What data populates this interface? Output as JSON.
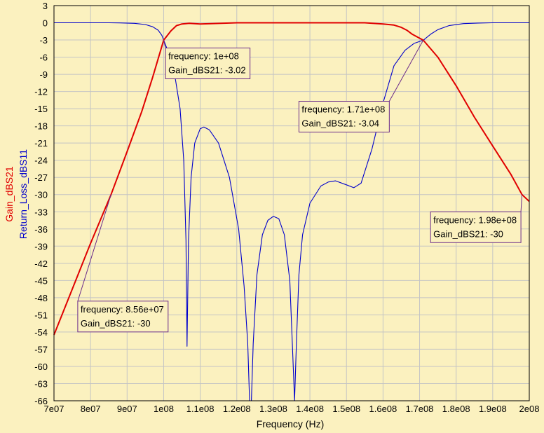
{
  "chart_data": {
    "type": "line",
    "xlabel": "Frequency (Hz)",
    "ylabels": [
      {
        "text": "Gain_dBS21",
        "color": "#e00000"
      },
      {
        "text": "Return_Loss_dBS11",
        "color": "#0000cc"
      }
    ],
    "xlim": [
      70000000,
      200000000
    ],
    "ylim": [
      -66,
      3
    ],
    "xticks": [
      70000000,
      80000000,
      90000000,
      100000000,
      110000000,
      120000000,
      130000000,
      140000000,
      150000000,
      160000000,
      170000000,
      180000000,
      190000000,
      200000000
    ],
    "xtick_labels": [
      "7e07",
      "8e07",
      "9e07",
      "1e08",
      "1.1e08",
      "1.2e08",
      "1.3e08",
      "1.4e08",
      "1.5e08",
      "1.6e08",
      "1.7e08",
      "1.8e08",
      "1.9e08",
      "2e08"
    ],
    "yticks": [
      3,
      0,
      -3,
      -6,
      -9,
      -12,
      -15,
      -18,
      -21,
      -24,
      -27,
      -30,
      -33,
      -36,
      -39,
      -42,
      -45,
      -48,
      -51,
      -54,
      -57,
      -60,
      -63,
      -66
    ],
    "ytick_labels": [
      "3",
      "0",
      "-3",
      "-6",
      "-9",
      "-12",
      "-15",
      "-18",
      "-21",
      "-24",
      "-27",
      "-30",
      "-33",
      "-36",
      "-39",
      "-42",
      "-45",
      "-48",
      "-51",
      "-54",
      "-57",
      "-60",
      "-63",
      "-66"
    ],
    "grid": true,
    "series": [
      {
        "name": "Gain_dBS21",
        "color": "#e00000",
        "x": [
          70000000,
          75000000,
          80000000,
          85600000,
          90000000,
          94000000,
          97000000,
          100000000,
          102000000,
          103500000,
          105000000,
          107000000,
          110000000,
          120000000,
          130000000,
          140000000,
          150000000,
          155000000,
          160000000,
          163000000,
          165000000,
          166500000,
          168000000,
          171000000,
          175000000,
          180000000,
          185000000,
          190000000,
          195000000,
          198000000,
          200000000
        ],
        "y": [
          -54.5,
          -46.5,
          -38.5,
          -30,
          -22.5,
          -15.5,
          -9.5,
          -3.02,
          -1.4,
          -0.5,
          -0.2,
          -0.1,
          -0.2,
          0,
          0,
          0,
          0,
          0,
          -0.2,
          -0.4,
          -0.8,
          -1.3,
          -2.0,
          -3.04,
          -6.0,
          -11.0,
          -16.5,
          -21.5,
          -26.5,
          -30,
          -31.2
        ]
      },
      {
        "name": "Return_Loss_dBS11",
        "color": "#0000cc",
        "x": [
          70000000,
          85000000,
          88000000,
          92000000,
          95000000,
          97000000,
          98500000,
          99500000,
          100000000,
          101500000,
          103000000,
          104500000,
          105500000,
          106100000,
          106400000,
          106800000,
          107500000,
          108500000,
          110000000,
          111000000,
          112500000,
          115000000,
          118000000,
          120500000,
          122000000,
          123000000,
          123500000,
          124000000,
          124500000,
          125500000,
          127000000,
          128500000,
          130000000,
          131500000,
          133000000,
          134500000,
          135200000,
          135800000,
          136300000,
          137000000,
          138000000,
          140000000,
          143000000,
          145000000,
          147000000,
          150000000,
          152000000,
          154000000,
          157000000,
          160000000,
          163000000,
          166000000,
          168500000,
          171000000,
          173000000,
          175000000,
          178000000,
          182000000,
          186000000,
          190000000,
          200000000
        ],
        "y": [
          0,
          0,
          -0.02,
          -0.1,
          -0.3,
          -0.7,
          -1.3,
          -2.2,
          -3.02,
          -5.5,
          -9.0,
          -15.0,
          -24.0,
          -38.0,
          -56.5,
          -38.0,
          -27.0,
          -21.0,
          -18.5,
          -18.2,
          -18.7,
          -21.0,
          -27.0,
          -36.0,
          -46.0,
          -56.0,
          -66.0,
          -66.0,
          -56.0,
          -44.0,
          -37.0,
          -34.5,
          -33.8,
          -34.2,
          -37.0,
          -45.0,
          -56.0,
          -66.0,
          -56.0,
          -44.0,
          -37.0,
          -31.5,
          -28.5,
          -27.8,
          -27.6,
          -28.3,
          -28.8,
          -28.0,
          -22.0,
          -14.0,
          -7.5,
          -4.8,
          -3.6,
          -3.04,
          -2.0,
          -1.2,
          -0.5,
          -0.15,
          -0.05,
          0,
          0
        ]
      }
    ],
    "markers": [
      {
        "series": "Gain_dBS21",
        "x": 100000000,
        "y": -3.02,
        "line1": "frequency: 1e+08",
        "line2": "Gain_dBS21: -3.02",
        "box_fx": 100500000,
        "box_fy": -4.4
      },
      {
        "series": "Gain_dBS21",
        "x": 171000000,
        "y": -3.04,
        "line1": "frequency: 1.71e+08",
        "line2": "Gain_dBS21: -3.04",
        "box_fx": 137000000,
        "box_fy": -13.7
      },
      {
        "series": "Gain_dBS21",
        "x": 198000000,
        "y": -30,
        "line1": "frequency: 1.98e+08",
        "line2": "Gain_dBS21: -30",
        "box_fx": 173000000,
        "box_fy": -33.0
      },
      {
        "series": "Gain_dBS21",
        "x": 85600000,
        "y": -30,
        "line1": "frequency: 8.56e+07",
        "line2": "Gain_dBS21: -30",
        "box_fx": 76500000,
        "box_fy": -48.6
      }
    ]
  }
}
